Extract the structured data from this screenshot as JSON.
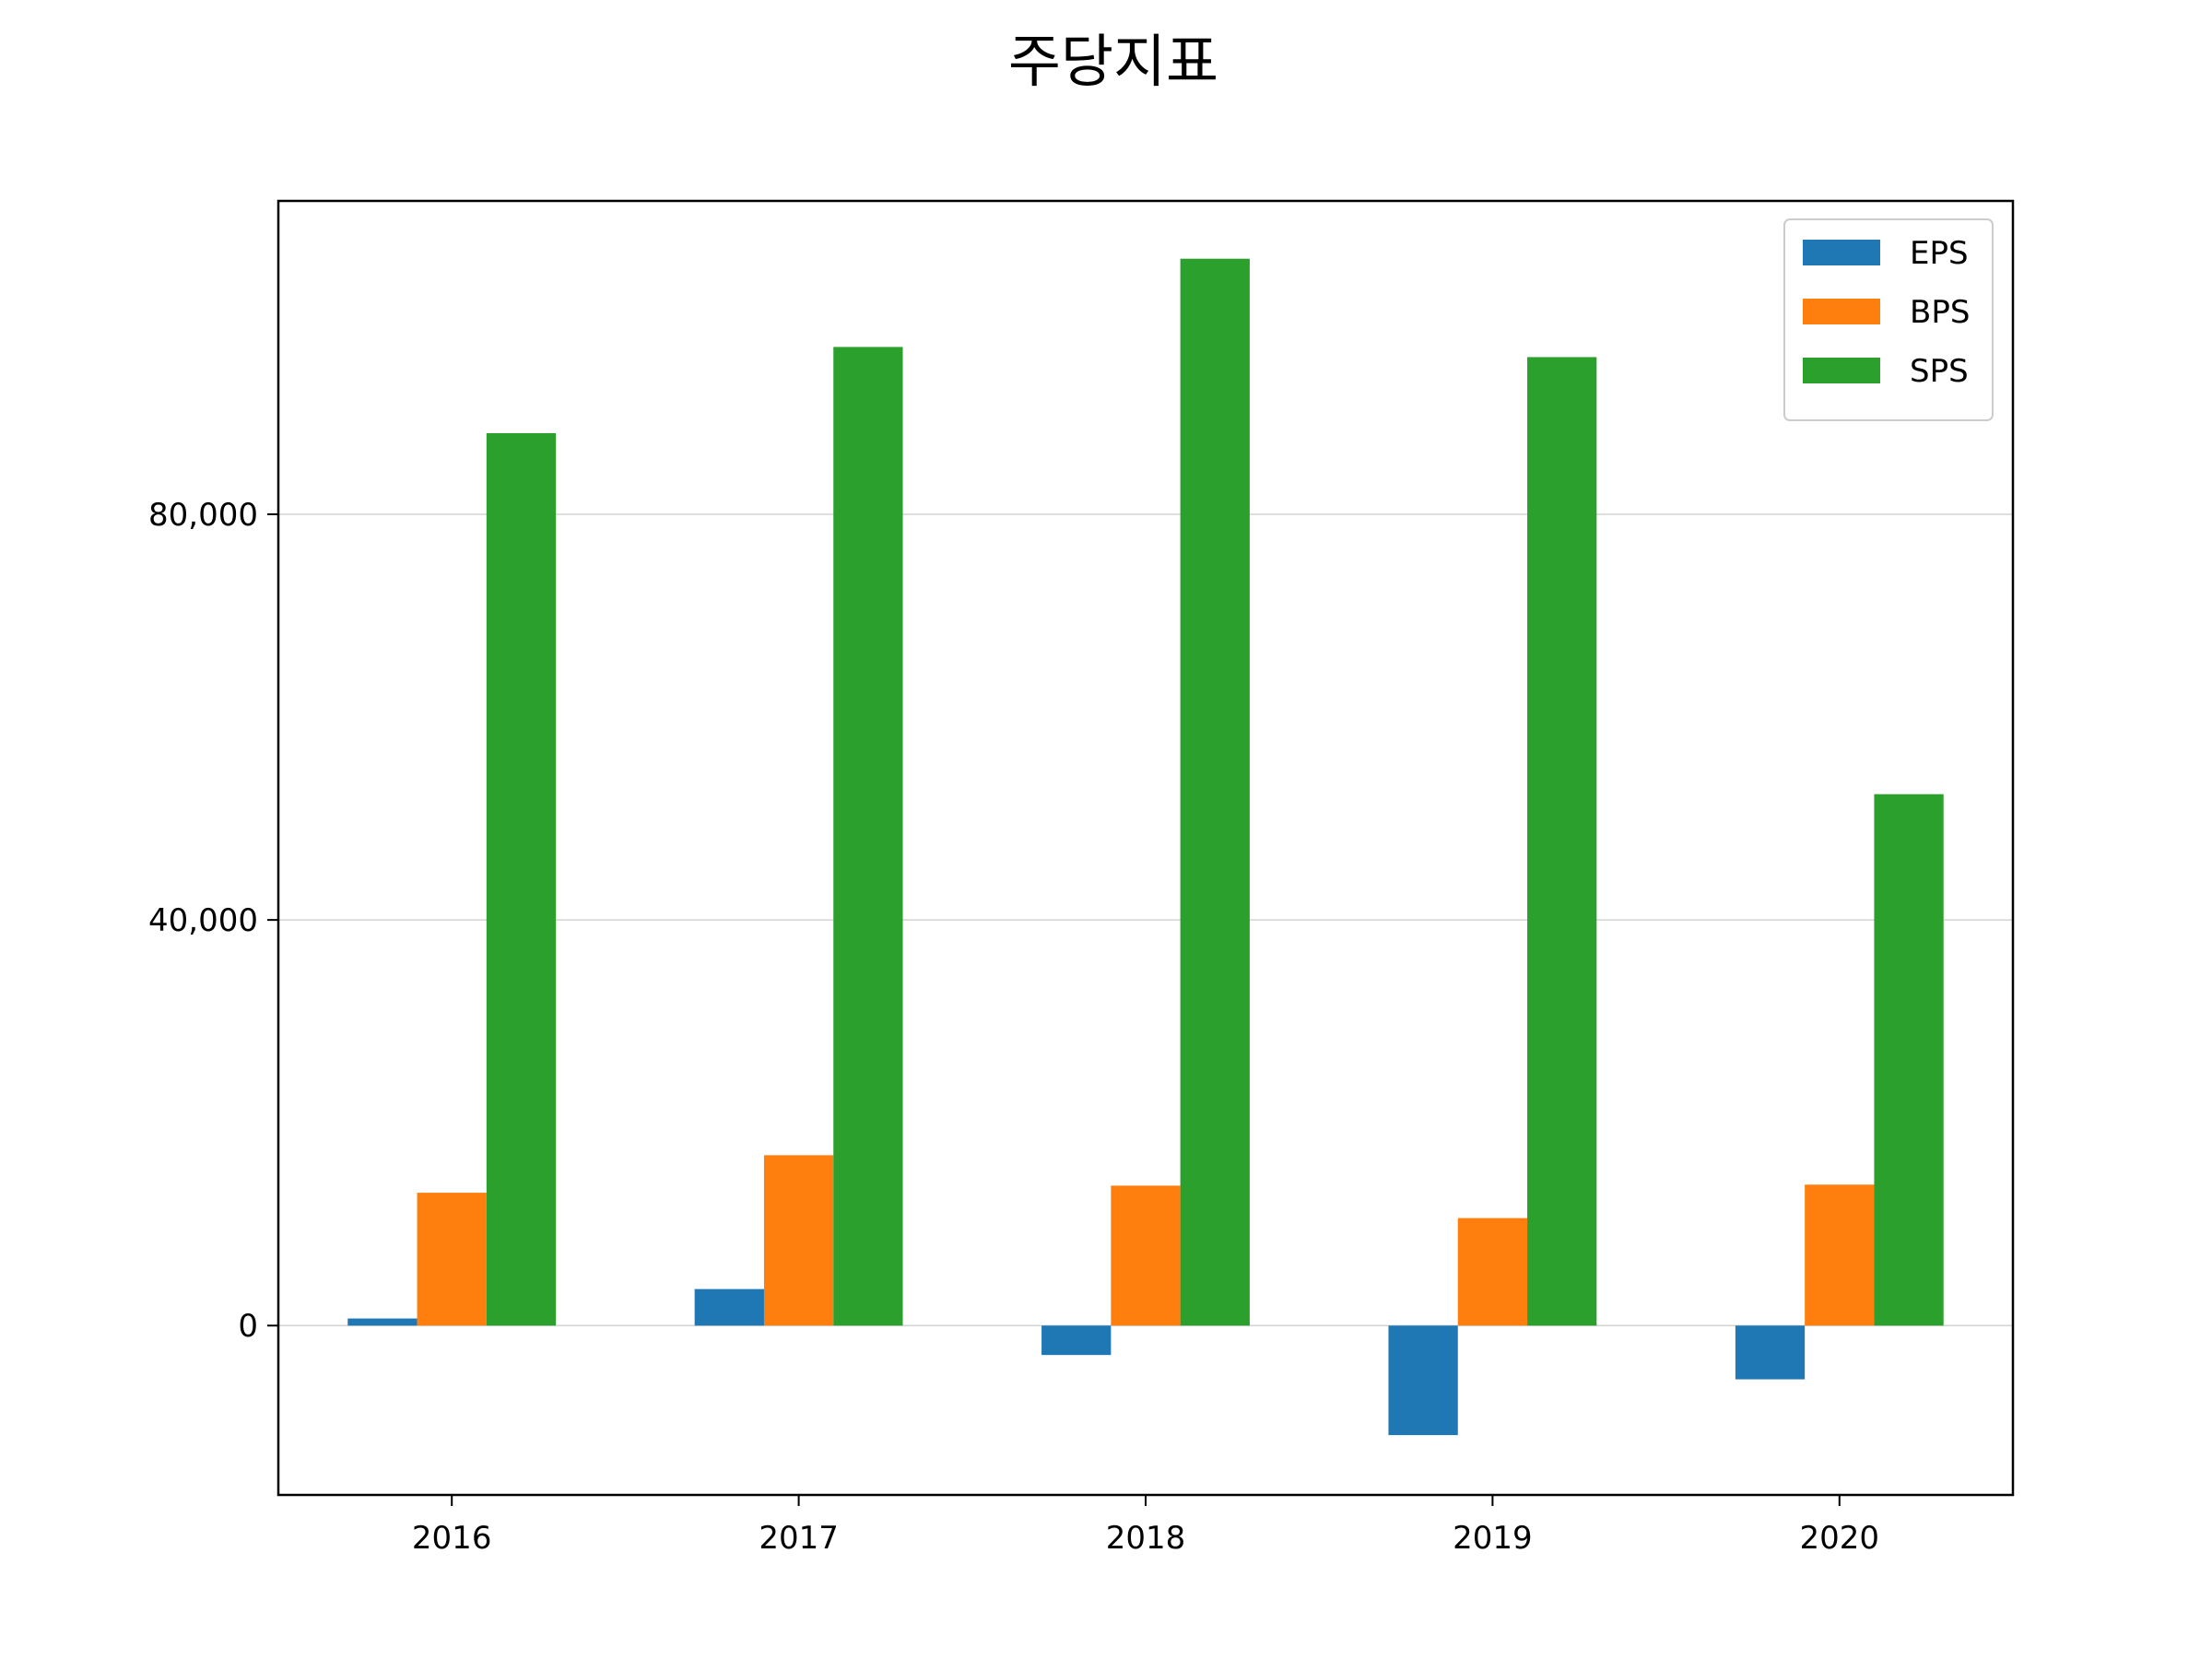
{
  "chart_data": {
    "type": "bar",
    "title": "주당지표",
    "xlabel": "",
    "ylabel": "",
    "categories": [
      "2016",
      "2017",
      "2018",
      "2019",
      "2020"
    ],
    "series": [
      {
        "name": "EPS",
        "color": "#1f77b4",
        "values": [
          700,
          3600,
          -2900,
          -10800,
          -5300
        ]
      },
      {
        "name": "BPS",
        "color": "#ff7f0e",
        "values": [
          13100,
          16800,
          13800,
          10600,
          13900
        ]
      },
      {
        "name": "SPS",
        "color": "#2ca02c",
        "values": [
          88000,
          96500,
          105200,
          95500,
          52400
        ]
      }
    ],
    "ylim": [
      -16700,
      110900
    ],
    "yticks": [
      0,
      40000,
      80000
    ],
    "ytick_labels": [
      "0",
      "40,000",
      "80,000"
    ],
    "grid": "horizontal",
    "legend_position": "top-right"
  }
}
